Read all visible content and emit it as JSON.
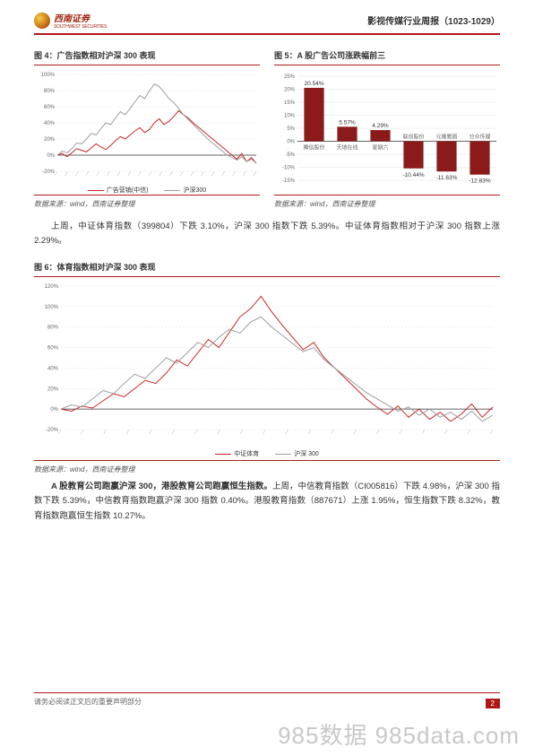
{
  "header": {
    "logo_cn": "西南证券",
    "logo_en": "SOUTHWEST SECURITIES",
    "title": "影视传媒行业周报（1023-1029）"
  },
  "colors": {
    "brand_red": "#b01818",
    "series_red": "#c62828",
    "series_grey": "#9e9e9e",
    "bar_dark_red": "#8b1a1a",
    "grid": "#e0e0e0",
    "axis": "#333333",
    "text": "#333333",
    "background": "#ffffff"
  },
  "fig4": {
    "title": "图 4：广告指数相对沪深 300 表现",
    "type": "line",
    "legend": [
      "广告营销(中信)",
      "沪深300"
    ],
    "ylim": [
      -20,
      100
    ],
    "ytick_step": 20,
    "ytick_suffix": "%",
    "series_colors": [
      "#c62828",
      "#9e9e9e"
    ],
    "line_width": 1,
    "source": "数据来源：wind，西南证券整理",
    "red": [
      0,
      2,
      -2,
      3,
      8,
      6,
      4,
      9,
      14,
      10,
      7,
      12,
      18,
      23,
      20,
      25,
      30,
      34,
      28,
      32,
      40,
      45,
      38,
      42,
      48,
      55,
      50,
      46,
      40,
      35,
      30,
      25,
      20,
      15,
      10,
      5,
      0,
      -5,
      2,
      -8,
      -3,
      -10
    ],
    "grey": [
      0,
      5,
      3,
      8,
      15,
      14,
      20,
      27,
      25,
      33,
      40,
      38,
      46,
      54,
      50,
      58,
      66,
      74,
      70,
      80,
      88,
      85,
      78,
      70,
      65,
      58,
      50,
      44,
      38,
      32,
      26,
      20,
      15,
      10,
      5,
      0,
      -3,
      -6,
      -2,
      -8,
      -5,
      -10
    ]
  },
  "fig5": {
    "title": "图 5：A 股广告公司涨跌幅前三",
    "type": "bar",
    "ylim": [
      -15,
      25
    ],
    "ytick_step": 5,
    "ytick_suffix": "%",
    "categories": [
      "腾信股份",
      "天地在线",
      "星期六",
      "联创股份",
      "元隆雅图",
      "分众传媒"
    ],
    "values": [
      20.54,
      5.57,
      4.29,
      -10.44,
      -11.63,
      -12.83
    ],
    "labels": [
      "20.54%",
      "5.57%",
      "4.29%",
      "-10.44%",
      "-11.63%",
      "-12.83%"
    ],
    "bar_color": "#8b1a1a",
    "bar_width": 0.6,
    "label_fontsize": 6.5,
    "cat_fontsize": 6,
    "source": "数据来源：wind，西南证券整理"
  },
  "para1": "上周，中证体育指数（399804）下跌 3.10%，沪深 300 指数下跌 5.39%。中证体育指数相对于沪深 300 指数上涨 2.29%。",
  "fig6": {
    "title": "图 6：体育指数相对沪深 300 表现",
    "type": "line",
    "legend": [
      "中证体育",
      "沪深 300"
    ],
    "ylim": [
      -20,
      120
    ],
    "ytick_step": 20,
    "ytick_suffix": "%",
    "series_colors": [
      "#c62828",
      "#9e9e9e"
    ],
    "line_width": 1,
    "source": "数据来源：wind，西南证券整理",
    "red": [
      0,
      -2,
      3,
      1,
      8,
      15,
      12,
      20,
      28,
      25,
      35,
      48,
      42,
      55,
      68,
      60,
      75,
      90,
      98,
      110,
      95,
      82,
      70,
      58,
      65,
      50,
      40,
      30,
      20,
      10,
      2,
      -5,
      3,
      -8,
      0,
      -10,
      -3,
      -12,
      -5,
      5,
      -8,
      2
    ],
    "grey": [
      0,
      4,
      2,
      10,
      18,
      15,
      25,
      34,
      30,
      40,
      50,
      45,
      55,
      65,
      60,
      70,
      78,
      74,
      85,
      90,
      80,
      72,
      64,
      56,
      60,
      48,
      40,
      32,
      24,
      16,
      10,
      4,
      -2,
      2,
      -6,
      0,
      -8,
      -3,
      -10,
      -2,
      -12,
      -6
    ]
  },
  "para2_bold": "A 股教育公司跑赢沪深 300，港股教育公司跑赢恒生指数。",
  "para2_rest": "上周，中信教育指数（CI005816）下跌 4.98%，沪深 300 指数下跌 5.39%，中信教育指数跑赢沪深 300 指数 0.40%。港股教育指数（887671）上涨 1.95%，恒生指数下跌 8.32%，教育指数跑赢恒生指数 10.27%。",
  "footer": {
    "disclaimer": "请务必阅读正文后的重要声明部分",
    "page": "2",
    "watermark": "985数据 985data.com"
  }
}
